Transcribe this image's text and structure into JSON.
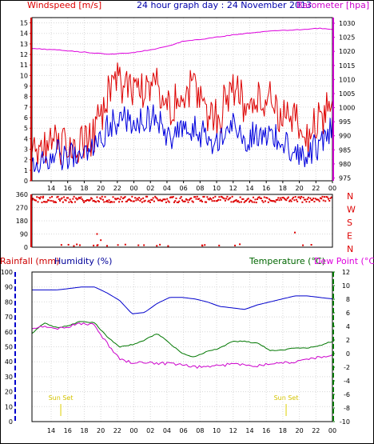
{
  "chart_data": [
    {
      "type": "line",
      "title": "24 hour graph day : 24 November 2013",
      "ylabel_left": "Windspeed [m/s]",
      "ylabel_right": "Barometer [hpa]",
      "x_ticks": [
        "14",
        "16",
        "18",
        "20",
        "22",
        "00",
        "02",
        "04",
        "06",
        "08",
        "10",
        "12",
        "14",
        "16",
        "18",
        "20",
        "22",
        "00"
      ],
      "y_left_ticks": [
        "0",
        "1",
        "2",
        "3",
        "4",
        "5",
        "6",
        "7",
        "8",
        "9",
        "10",
        "11",
        "12",
        "13",
        "14",
        "15"
      ],
      "y_right_ticks": [
        "975",
        "980",
        "985",
        "990",
        "995",
        "1000",
        "1005",
        "1010",
        "1015",
        "1020",
        "1025",
        "1030"
      ],
      "ylim_left": [
        0,
        15.5
      ],
      "ylim_right": [
        974,
        1032
      ],
      "series": [
        {
          "color": "#dd0000",
          "axis": "left",
          "x": [
            0,
            2,
            4,
            5,
            6,
            7,
            8,
            9,
            10,
            11,
            12,
            13,
            14,
            15,
            16,
            17,
            18,
            19,
            20,
            21,
            22,
            23,
            24
          ],
          "values": [
            2.5,
            3.5,
            3.2,
            4.5,
            8.0,
            9.5,
            8.5,
            9.0,
            9.5,
            7.0,
            8.0,
            9.0,
            6.5,
            6.0,
            9.5,
            7.0,
            7.5,
            8.0,
            6.0,
            5.5,
            4.0,
            6.0,
            7.5
          ]
        },
        {
          "color": "#0000dd",
          "axis": "left",
          "x": [
            0,
            2,
            4,
            5,
            6,
            7,
            8,
            9,
            10,
            11,
            12,
            13,
            14,
            15,
            16,
            17,
            18,
            19,
            20,
            21,
            22,
            23,
            24
          ],
          "values": [
            1.5,
            2.5,
            2.0,
            3.5,
            5.0,
            6.0,
            5.5,
            6.0,
            5.8,
            4.0,
            4.5,
            5.0,
            4.0,
            3.5,
            5.5,
            4.0,
            4.5,
            4.5,
            3.5,
            3.0,
            2.5,
            3.5,
            5.0
          ]
        },
        {
          "color": "#dd00dd",
          "axis": "right",
          "x": [
            0,
            2,
            4,
            6,
            8,
            10,
            11,
            12,
            13,
            14,
            15,
            16,
            17,
            18,
            19,
            20,
            21,
            22,
            23,
            24
          ],
          "values": [
            1021.0,
            1020.5,
            1019.8,
            1019.0,
            1019.5,
            1021.0,
            1022.0,
            1023.5,
            1024.0,
            1024.6,
            1025.2,
            1025.8,
            1026.3,
            1026.8,
            1027.2,
            1027.4,
            1027.6,
            1027.9,
            1028.2,
            1027.8
          ]
        }
      ]
    },
    {
      "type": "scatter",
      "ylabel_right": [
        "N",
        "W",
        "S",
        "E",
        "N"
      ],
      "y_ticks": [
        "360",
        "270",
        "180",
        "90",
        "0"
      ],
      "ylim": [
        0,
        360
      ],
      "color": "#dd0000"
    },
    {
      "type": "line",
      "ylabel_left": [
        "Rainfall (mm)",
        "Humidity (%)"
      ],
      "ylabel_right": [
        "Temperature (°C)",
        "Dew Point (°C)"
      ],
      "y_left_ticks": [
        "0",
        "10",
        "20",
        "30",
        "40",
        "50",
        "60",
        "70",
        "80",
        "90",
        "100"
      ],
      "y_right_ticks": [
        "12",
        "10",
        "8",
        "6",
        "4",
        "2",
        "0",
        "-2",
        "-4",
        "-6",
        "-8",
        "-10"
      ],
      "ylim_left": [
        0,
        100
      ],
      "ylim_right": [
        -10,
        12
      ],
      "annotations": [
        "Sun Set",
        "Sun Set"
      ],
      "series": [
        {
          "color": "#0000cc",
          "axis": "left",
          "x": [
            0,
            1,
            2,
            3,
            4,
            5,
            6,
            7,
            8,
            9,
            10,
            11,
            12,
            13,
            14,
            15,
            16,
            17,
            18,
            19,
            20,
            21,
            22,
            23,
            24
          ],
          "values": [
            88,
            88,
            88,
            89,
            90,
            90,
            86,
            81,
            72,
            73,
            79,
            83,
            83,
            82,
            80,
            77,
            76,
            75,
            78,
            80,
            82,
            84,
            84,
            83,
            82
          ]
        },
        {
          "color": "#007700",
          "axis": "right",
          "x": [
            0,
            1,
            2,
            3,
            4,
            5,
            6,
            7,
            8,
            9,
            10,
            11,
            12,
            13,
            14,
            15,
            16,
            17,
            18,
            19,
            20,
            21,
            22,
            23,
            24
          ],
          "values": [
            3.0,
            4.5,
            3.8,
            4.2,
            4.8,
            4.5,
            2.5,
            1.0,
            1.3,
            2.0,
            3.0,
            1.5,
            0.0,
            -0.5,
            0.3,
            0.8,
            1.8,
            1.8,
            1.5,
            0.5,
            0.5,
            0.8,
            0.8,
            1.2,
            1.8
          ]
        },
        {
          "color": "#cc00cc",
          "axis": "right",
          "x": [
            0,
            1,
            2,
            3,
            4,
            5,
            6,
            7,
            8,
            9,
            10,
            11,
            12,
            13,
            14,
            15,
            16,
            17,
            18,
            19,
            20,
            21,
            22,
            23,
            24
          ],
          "values": [
            3.5,
            4.0,
            3.6,
            4.0,
            4.5,
            4.2,
            1.5,
            -0.8,
            -1.3,
            -1.3,
            -1.4,
            -1.5,
            -1.7,
            -2.0,
            -1.9,
            -1.8,
            -1.5,
            -1.6,
            -1.8,
            -1.4,
            -1.3,
            -1.3,
            -0.8,
            -0.5,
            -0.3
          ]
        },
        {
          "color": "#cc0000",
          "axis": "left",
          "x": [
            0,
            24
          ],
          "values": [
            0,
            0
          ]
        }
      ]
    }
  ]
}
